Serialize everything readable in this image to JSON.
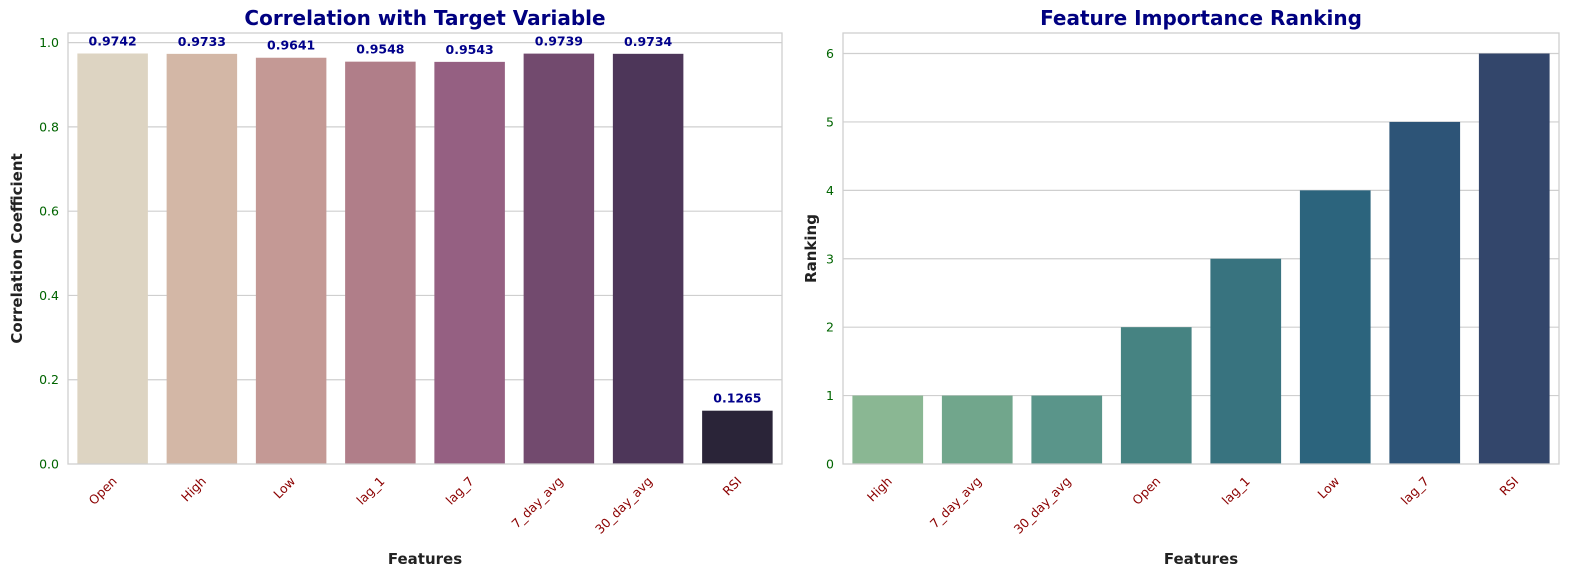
{
  "chart_data": [
    {
      "type": "bar",
      "title": "Correlation with Target Variable",
      "xlabel": "Features",
      "ylabel": "Correlation Coefficient",
      "categories": [
        "Open",
        "High",
        "Low",
        "lag_1",
        "lag_7",
        "7_day_avg",
        "30_day_avg",
        "RSI"
      ],
      "values": [
        0.9742,
        0.9733,
        0.9641,
        0.9548,
        0.9543,
        0.9739,
        0.9734,
        0.1265
      ],
      "value_labels": [
        "0.9742",
        "0.9733",
        "0.9641",
        "0.9548",
        "0.9543",
        "0.9739",
        "0.9734",
        "0.1265"
      ],
      "yticks": [
        "0.0",
        "0.2",
        "0.4",
        "0.6",
        "0.8",
        "1.0"
      ],
      "ytick_values": [
        0,
        0.2,
        0.4,
        0.6,
        0.8,
        1.0
      ],
      "ylim": [
        0,
        1.0228
      ],
      "grid": "horizontal",
      "colors": [
        "#ddd4c2",
        "#d3b7a6",
        "#c49995",
        "#b07e89",
        "#956082",
        "#724a6e",
        "#4d3659",
        "#2a2438"
      ],
      "title_color": "#000080",
      "label_color": "#00008b",
      "xtick_color": "#8b0000",
      "ytick_color": "#006400"
    },
    {
      "type": "bar",
      "title": "Feature Importance Ranking",
      "xlabel": "Features",
      "ylabel": "Ranking",
      "categories": [
        "High",
        "7_day_avg",
        "30_day_avg",
        "Open",
        "lag_1",
        "Low",
        "lag_7",
        "RSI"
      ],
      "values": [
        1,
        1,
        1,
        2,
        3,
        4,
        5,
        6
      ],
      "yticks": [
        "0",
        "1",
        "2",
        "3",
        "4",
        "5",
        "6"
      ],
      "ytick_values": [
        0,
        1,
        2,
        3,
        4,
        5,
        6
      ],
      "ylim": [
        0,
        6.3
      ],
      "grid": "horizontal",
      "colors": [
        "#8ab793",
        "#71a68c",
        "#5a958a",
        "#468382",
        "#38737f",
        "#2c647d",
        "#2d5477",
        "#33466b"
      ],
      "title_color": "#000080",
      "xtick_color": "#8b0000",
      "ytick_color": "#006400"
    }
  ]
}
